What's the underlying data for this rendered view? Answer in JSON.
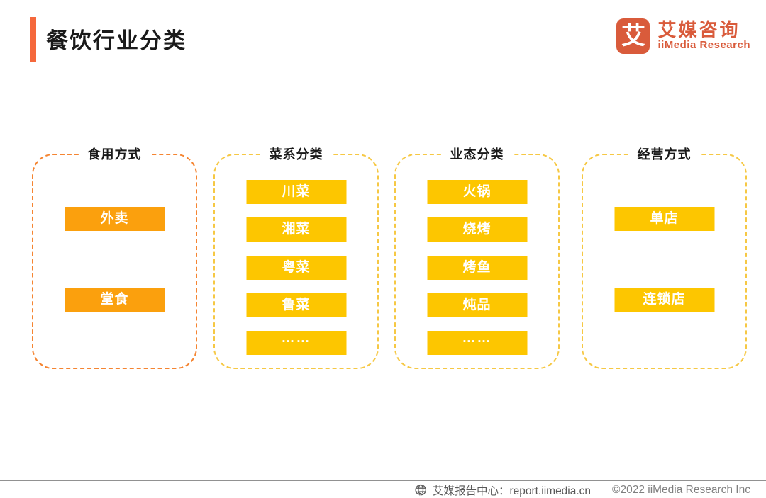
{
  "page": {
    "title": "餐饮行业分类",
    "logo": {
      "icon_glyph": "艾",
      "name_cn": "艾媒咨询",
      "name_en": "iiMedia Research"
    },
    "footer": {
      "report_center": "艾媒报告中心：report.iimedia.cn",
      "copyright": "©2022  iiMedia Research Inc"
    }
  },
  "colors": {
    "title_bar": "#F5683C",
    "brand": "#D95B3B",
    "orange_box": "#FBA00D",
    "orange_border": "#F58532",
    "yellow_box": "#FDC600",
    "yellow_border": "#F6C844",
    "footer_text": "#595959",
    "footer_muted": "#7F7F7F",
    "footer_line": "#919191",
    "title_color": "#1A1A1A"
  },
  "groups": [
    {
      "title": "食用方式",
      "theme": "orange",
      "items": [
        "外卖",
        "堂食"
      ]
    },
    {
      "title": "菜系分类",
      "theme": "yellow",
      "items": [
        "川菜",
        "湘菜",
        "粤菜",
        "鲁菜",
        "……"
      ]
    },
    {
      "title": "业态分类",
      "theme": "yellow",
      "items": [
        "火锅",
        "烧烤",
        "烤鱼",
        "炖品",
        "……"
      ]
    },
    {
      "title": "经营方式",
      "theme": "yellow",
      "items": [
        "单店",
        "连锁店"
      ]
    }
  ]
}
